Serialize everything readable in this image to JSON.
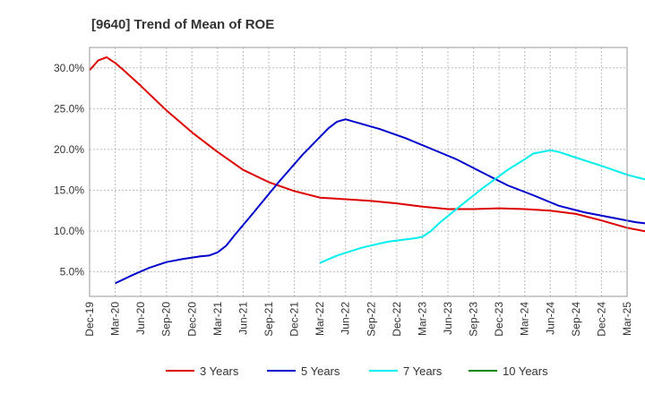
{
  "chart_data": {
    "type": "line",
    "title": "[9640]  Trend of Mean of ROE",
    "xlabel": "",
    "ylabel": "",
    "x_ticks": [
      "Dec-19",
      "Mar-20",
      "Jun-20",
      "Sep-20",
      "Dec-20",
      "Mar-21",
      "Jun-21",
      "Sep-21",
      "Dec-21",
      "Mar-22",
      "Jun-22",
      "Sep-22",
      "Dec-22",
      "Mar-23",
      "Jun-23",
      "Sep-23",
      "Dec-23",
      "Mar-24",
      "Jun-24",
      "Sep-24",
      "Dec-24",
      "Mar-25"
    ],
    "y_ticks": [
      "5.0%",
      "10.0%",
      "15.0%",
      "20.0%",
      "25.0%",
      "30.0%"
    ],
    "ylim": [
      2.0,
      32.5
    ],
    "grid": true,
    "legend_position": "bottom",
    "x_units": "months since Dec-19",
    "series": [
      {
        "name": "3 Years",
        "color": "#dd0000",
        "points": [
          [
            0,
            29.7
          ],
          [
            1,
            30.9
          ],
          [
            2,
            31.3
          ],
          [
            3,
            30.6
          ],
          [
            4,
            29.7
          ],
          [
            6,
            27.8
          ],
          [
            9,
            24.8
          ],
          [
            12,
            22.1
          ],
          [
            15,
            19.7
          ],
          [
            18,
            17.5
          ],
          [
            21,
            16.0
          ],
          [
            24,
            14.9
          ],
          [
            27,
            14.1
          ],
          [
            30,
            13.9
          ],
          [
            33,
            13.7
          ],
          [
            36,
            13.4
          ],
          [
            39,
            13.0
          ],
          [
            42,
            12.7
          ],
          [
            45,
            12.7
          ],
          [
            48,
            12.8
          ],
          [
            51,
            12.7
          ],
          [
            54,
            12.5
          ],
          [
            57,
            12.1
          ],
          [
            60,
            11.3
          ],
          [
            63,
            10.4
          ],
          [
            66,
            9.8
          ],
          [
            69,
            9.4
          ],
          [
            69.6,
            9.3
          ]
        ]
      },
      {
        "name": "5 Years",
        "color": "#0000cc",
        "points": [
          [
            3,
            3.6
          ],
          [
            5,
            4.6
          ],
          [
            7,
            5.5
          ],
          [
            9,
            6.2
          ],
          [
            11,
            6.6
          ],
          [
            13,
            6.9
          ],
          [
            14,
            7.0
          ],
          [
            15,
            7.4
          ],
          [
            16,
            8.2
          ],
          [
            17,
            9.5
          ],
          [
            19,
            12.0
          ],
          [
            22,
            15.8
          ],
          [
            25,
            19.4
          ],
          [
            28,
            22.6
          ],
          [
            29,
            23.4
          ],
          [
            30,
            23.7
          ],
          [
            31,
            23.4
          ],
          [
            34,
            22.5
          ],
          [
            37,
            21.4
          ],
          [
            40,
            20.1
          ],
          [
            43,
            18.8
          ],
          [
            46,
            17.2
          ],
          [
            49,
            15.6
          ],
          [
            52,
            14.4
          ],
          [
            55,
            13.1
          ],
          [
            58,
            12.3
          ],
          [
            61,
            11.7
          ],
          [
            64,
            11.1
          ],
          [
            67,
            10.7
          ],
          [
            69.6,
            10.4
          ]
        ]
      },
      {
        "name": "7 Years",
        "color": "#00eeee",
        "points": [
          [
            27,
            6.1
          ],
          [
            29,
            7.0
          ],
          [
            32,
            8.0
          ],
          [
            35,
            8.7
          ],
          [
            38,
            9.1
          ],
          [
            39,
            9.3
          ],
          [
            40,
            10.0
          ],
          [
            41,
            11.0
          ],
          [
            43,
            12.7
          ],
          [
            46,
            15.2
          ],
          [
            49,
            17.5
          ],
          [
            51,
            18.8
          ],
          [
            52,
            19.5
          ],
          [
            54,
            19.9
          ],
          [
            55,
            19.7
          ],
          [
            57,
            19.0
          ],
          [
            60,
            18.0
          ],
          [
            63,
            16.9
          ],
          [
            66,
            16.1
          ],
          [
            69.6,
            15.4
          ]
        ]
      },
      {
        "name": "10 Years",
        "color": "#008800",
        "points": []
      }
    ]
  }
}
